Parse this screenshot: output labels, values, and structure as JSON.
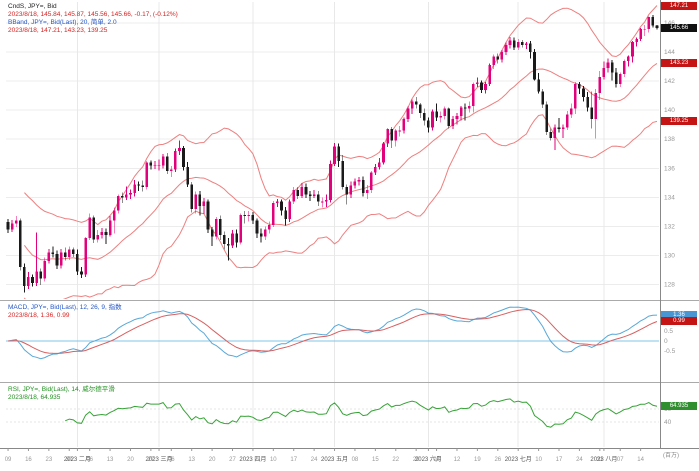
{
  "panels": {
    "price": {
      "legend_line1": "CndS, JPY=, Bid",
      "legend_line2": "2023/8/18, 145.84, 145.87, 145.56, 145.66, -0.17, (-0.12%)",
      "legend_line3": "BBand, JPY=, Bid(Last), 20, 简单, 2.0",
      "legend_line4": "2023/8/18, 147.21, 143.23, 139.25",
      "badges": {
        "upper_band": "147.21",
        "last_price": "145.66",
        "middle_band": "143.23",
        "lower_band": "139.25"
      },
      "y_ticks": [
        146,
        144,
        142,
        140,
        138,
        136,
        134,
        132,
        130,
        128
      ]
    },
    "macd": {
      "legend_line1": "MACD, JPY=, Bid(Last), 12, 26, 9, 指数",
      "legend_line2": "2023/8/18, 1.36, 0.99",
      "badges": {
        "macd_value": "1.36",
        "signal_value": "0.99"
      },
      "y_ticks": [
        0.5,
        0,
        -0.5
      ]
    },
    "rsi": {
      "legend_line1": "RSI, JPY=, Bid(Last), 14, 威尔德平滑",
      "legend_line2": "2023/8/18, 64.935",
      "badges": {
        "rsi_value": "64.935"
      },
      "y_ticks": [
        60,
        40
      ]
    }
  },
  "x_axis": {
    "unit_note": "(百万)",
    "labels": [
      {
        "i": 0,
        "t": "09"
      },
      {
        "i": 5,
        "t": "16"
      },
      {
        "i": 10,
        "t": "23"
      },
      {
        "i": 15,
        "t": "30"
      },
      {
        "i": 17,
        "t": "2023 二月",
        "month": true
      },
      {
        "i": 20,
        "t": "06"
      },
      {
        "i": 25,
        "t": "13"
      },
      {
        "i": 30,
        "t": "20"
      },
      {
        "i": 35,
        "t": "27"
      },
      {
        "i": 37,
        "t": "2023 三月",
        "month": true
      },
      {
        "i": 40,
        "t": "06"
      },
      {
        "i": 45,
        "t": "13"
      },
      {
        "i": 50,
        "t": "20"
      },
      {
        "i": 55,
        "t": "27"
      },
      {
        "i": 60,
        "t": "2023 四月",
        "month": true
      },
      {
        "i": 65,
        "t": "10"
      },
      {
        "i": 70,
        "t": "17"
      },
      {
        "i": 75,
        "t": "24"
      },
      {
        "i": 80,
        "t": "2023 五月",
        "month": true
      },
      {
        "i": 85,
        "t": "08"
      },
      {
        "i": 90,
        "t": "15"
      },
      {
        "i": 95,
        "t": "22"
      },
      {
        "i": 100,
        "t": "29"
      },
      {
        "i": 103,
        "t": "2023 六月",
        "month": true
      },
      {
        "i": 105,
        "t": "05"
      },
      {
        "i": 110,
        "t": "12"
      },
      {
        "i": 115,
        "t": "19"
      },
      {
        "i": 120,
        "t": "26"
      },
      {
        "i": 125,
        "t": "2023 七月",
        "month": true
      },
      {
        "i": 130,
        "t": "10"
      },
      {
        "i": 135,
        "t": "17"
      },
      {
        "i": 140,
        "t": "24"
      },
      {
        "i": 145,
        "t": "31"
      },
      {
        "i": 146,
        "t": "2023 八月",
        "month": true
      },
      {
        "i": 150,
        "t": "07"
      },
      {
        "i": 155,
        "t": "14"
      }
    ]
  },
  "colors": {
    "up": "#e2007d",
    "down": "#1a1a1a",
    "band": "#ef7f7f",
    "macd": "#58a8d8",
    "signal": "#d86060",
    "zero_line": "#7fc4e8",
    "rsi": "#36a336",
    "badge_red": "#c41414",
    "badge_black": "#111111",
    "badge_blue": "#4a96d2",
    "badge_green": "#2f8f2f"
  },
  "chart_data": {
    "type": "candlestick",
    "symbol": "JPY=",
    "last_bar_date": "2023/8/18",
    "indicators": {
      "bollinger": {
        "period": 20,
        "mult": 2.0,
        "ma_type": "简单"
      },
      "macd": {
        "fast": 12,
        "slow": 26,
        "signal": 9,
        "ma_type": "指数"
      },
      "rsi": {
        "period": 14,
        "smoothing": "威尔德平滑"
      }
    },
    "candles": [
      [
        132.3,
        132.5,
        131.55,
        131.8
      ],
      [
        131.8,
        132.45,
        131.6,
        132.2
      ],
      [
        132.2,
        132.7,
        131.95,
        132.4
      ],
      [
        132.4,
        132.55,
        128.95,
        129.2
      ],
      [
        129.2,
        129.45,
        127.45,
        127.9
      ],
      [
        127.9,
        128.85,
        127.7,
        128.5
      ],
      [
        128.5,
        128.7,
        127.85,
        128.1
      ],
      [
        128.1,
        131.58,
        127.9,
        128.9
      ],
      [
        128.9,
        129.1,
        127.95,
        128.4
      ],
      [
        128.4,
        129.85,
        128.2,
        129.6
      ],
      [
        129.6,
        130.45,
        129.45,
        130.2
      ],
      [
        130.2,
        130.6,
        129.85,
        130.1
      ],
      [
        130.1,
        130.35,
        129.05,
        129.3
      ],
      [
        129.3,
        130.45,
        129.1,
        130.2
      ],
      [
        130.2,
        130.55,
        129.65,
        129.9
      ],
      [
        129.9,
        130.6,
        129.7,
        130.4
      ],
      [
        130.4,
        130.55,
        129.9,
        130.1
      ],
      [
        130.1,
        130.4,
        128.65,
        128.9
      ],
      [
        128.9,
        129.2,
        128.45,
        128.7
      ],
      [
        128.7,
        131.25,
        128.5,
        131.2
      ],
      [
        131.2,
        132.9,
        131.05,
        132.6
      ],
      [
        132.6,
        132.75,
        130.85,
        131.1
      ],
      [
        131.1,
        131.75,
        130.9,
        131.4
      ],
      [
        131.4,
        131.9,
        131.15,
        131.6
      ],
      [
        131.6,
        131.85,
        130.8,
        131.4
      ],
      [
        131.4,
        132.7,
        131.3,
        132.4
      ],
      [
        132.4,
        133.3,
        131.5,
        133.1
      ],
      [
        133.1,
        134.2,
        132.9,
        134.1
      ],
      [
        134.1,
        134.35,
        133.6,
        134.0
      ],
      [
        134.0,
        134.75,
        133.8,
        134.2
      ],
      [
        134.2,
        134.55,
        133.9,
        134.3
      ],
      [
        134.3,
        135.2,
        134.05,
        134.9
      ],
      [
        134.9,
        135.1,
        134.45,
        134.8
      ],
      [
        134.8,
        135.15,
        134.4,
        134.7
      ],
      [
        134.7,
        136.5,
        134.55,
        136.4
      ],
      [
        136.4,
        136.55,
        135.9,
        136.2
      ],
      [
        136.2,
        136.5,
        135.95,
        136.2
      ],
      [
        136.2,
        136.6,
        135.85,
        136.2
      ],
      [
        136.2,
        137.0,
        136.0,
        136.8
      ],
      [
        136.8,
        137.05,
        135.6,
        135.8
      ],
      [
        135.8,
        136.15,
        135.4,
        135.9
      ],
      [
        135.9,
        137.35,
        135.75,
        137.2
      ],
      [
        137.2,
        137.91,
        136.9,
        137.4
      ],
      [
        137.4,
        137.55,
        135.85,
        136.1
      ],
      [
        136.1,
        136.45,
        134.7,
        134.9
      ],
      [
        134.9,
        135.05,
        132.95,
        133.2
      ],
      [
        133.2,
        134.4,
        132.9,
        134.2
      ],
      [
        134.2,
        134.45,
        132.75,
        133.4
      ],
      [
        133.4,
        133.95,
        132.85,
        133.7
      ],
      [
        133.7,
        133.85,
        131.55,
        131.8
      ],
      [
        131.8,
        131.95,
        130.65,
        131.3
      ],
      [
        131.3,
        132.65,
        131.1,
        132.5
      ],
      [
        132.5,
        132.75,
        131.05,
        131.4
      ],
      [
        131.4,
        131.65,
        130.4,
        130.8
      ],
      [
        130.8,
        131.2,
        129.65,
        130.7
      ],
      [
        130.7,
        131.75,
        130.5,
        131.5
      ],
      [
        131.5,
        131.8,
        130.55,
        130.9
      ],
      [
        130.9,
        132.9,
        130.75,
        132.8
      ],
      [
        132.8,
        133.05,
        132.2,
        132.7
      ],
      [
        132.7,
        133.05,
        132.35,
        132.8
      ],
      [
        132.8,
        133.0,
        132.15,
        132.4
      ],
      [
        132.4,
        132.55,
        131.2,
        131.5
      ],
      [
        131.5,
        131.85,
        130.9,
        131.3
      ],
      [
        131.3,
        132.0,
        131.05,
        131.8
      ],
      [
        131.8,
        132.35,
        131.5,
        132.1
      ],
      [
        132.1,
        133.75,
        131.95,
        133.6
      ],
      [
        133.6,
        133.9,
        133.35,
        133.7
      ],
      [
        133.7,
        133.85,
        132.75,
        133.1
      ],
      [
        133.1,
        133.35,
        132.05,
        132.5
      ],
      [
        132.5,
        133.85,
        132.3,
        133.7
      ],
      [
        133.7,
        134.7,
        133.55,
        134.5
      ],
      [
        134.5,
        134.7,
        133.9,
        134.1
      ],
      [
        134.1,
        135.0,
        133.95,
        134.7
      ],
      [
        134.7,
        134.95,
        133.95,
        134.2
      ],
      [
        134.2,
        134.45,
        133.75,
        134.1
      ],
      [
        134.1,
        134.5,
        133.95,
        134.2
      ],
      [
        134.2,
        134.45,
        133.4,
        133.7
      ],
      [
        133.7,
        134.0,
        133.3,
        133.7
      ],
      [
        133.7,
        134.2,
        133.35,
        133.8
      ],
      [
        133.8,
        136.55,
        133.65,
        136.3
      ],
      [
        136.3,
        137.75,
        136.15,
        137.5
      ],
      [
        137.5,
        137.7,
        136.1,
        136.5
      ],
      [
        136.5,
        136.9,
        134.55,
        134.7
      ],
      [
        134.7,
        134.9,
        133.5,
        134.2
      ],
      [
        134.2,
        135.1,
        133.95,
        134.8
      ],
      [
        134.8,
        135.3,
        134.6,
        135.1
      ],
      [
        135.1,
        135.4,
        134.8,
        135.2
      ],
      [
        135.2,
        135.45,
        134.05,
        134.3
      ],
      [
        134.3,
        134.85,
        133.9,
        134.5
      ],
      [
        134.5,
        135.8,
        134.3,
        135.7
      ],
      [
        135.7,
        136.3,
        135.55,
        136.1
      ],
      [
        136.1,
        136.7,
        135.9,
        136.4
      ],
      [
        136.4,
        137.8,
        136.25,
        137.7
      ],
      [
        137.7,
        138.75,
        137.45,
        138.7
      ],
      [
        138.7,
        138.85,
        137.4,
        137.9
      ],
      [
        137.9,
        138.7,
        137.5,
        138.6
      ],
      [
        138.6,
        138.9,
        138.2,
        138.6
      ],
      [
        138.6,
        139.5,
        138.4,
        139.4
      ],
      [
        139.4,
        140.25,
        139.2,
        140.1
      ],
      [
        140.1,
        140.75,
        139.75,
        140.6
      ],
      [
        140.6,
        140.9,
        140.1,
        140.4
      ],
      [
        140.4,
        140.5,
        139.45,
        139.8
      ],
      [
        139.8,
        140.1,
        138.95,
        139.3
      ],
      [
        139.3,
        139.5,
        138.45,
        138.8
      ],
      [
        138.8,
        140.05,
        138.6,
        139.9
      ],
      [
        139.9,
        140.45,
        139.25,
        139.5
      ],
      [
        139.5,
        139.9,
        139.15,
        139.6
      ],
      [
        139.6,
        140.25,
        139.35,
        140.1
      ],
      [
        140.1,
        140.2,
        138.75,
        138.9
      ],
      [
        138.9,
        139.6,
        138.7,
        139.4
      ],
      [
        139.4,
        139.8,
        139.0,
        139.6
      ],
      [
        139.6,
        140.3,
        139.3,
        140.2
      ],
      [
        140.2,
        140.45,
        139.3,
        140.1
      ],
      [
        140.1,
        140.6,
        139.85,
        140.3
      ],
      [
        140.3,
        141.9,
        139.85,
        141.8
      ],
      [
        141.8,
        142.25,
        141.6,
        141.9
      ],
      [
        141.9,
        142.05,
        141.2,
        141.4
      ],
      [
        141.4,
        141.95,
        141.15,
        141.8
      ],
      [
        141.8,
        143.2,
        141.65,
        143.1
      ],
      [
        143.1,
        143.85,
        142.85,
        143.7
      ],
      [
        143.7,
        143.9,
        143.2,
        143.5
      ],
      [
        143.5,
        144.15,
        143.3,
        144.0
      ],
      [
        144.0,
        144.65,
        143.8,
        144.5
      ],
      [
        144.5,
        145.05,
        144.25,
        144.8
      ],
      [
        144.8,
        145.0,
        144.15,
        144.3
      ],
      [
        144.3,
        144.9,
        144.15,
        144.7
      ],
      [
        144.7,
        144.85,
        144.3,
        144.5
      ],
      [
        144.5,
        144.7,
        144.2,
        144.6
      ],
      [
        144.6,
        144.75,
        143.55,
        144.0
      ],
      [
        144.0,
        144.2,
        142.05,
        142.1
      ],
      [
        142.1,
        142.55,
        141.15,
        141.3
      ],
      [
        141.3,
        141.45,
        140.15,
        140.4
      ],
      [
        140.4,
        140.6,
        138.3,
        138.5
      ],
      [
        138.5,
        138.75,
        137.9,
        138.1
      ],
      [
        138.1,
        139.0,
        137.25,
        138.8
      ],
      [
        138.8,
        139.45,
        138.45,
        138.7
      ],
      [
        138.7,
        139.0,
        138.1,
        138.8
      ],
      [
        138.8,
        139.95,
        138.65,
        139.7
      ],
      [
        139.7,
        140.45,
        139.45,
        140.1
      ],
      [
        140.1,
        141.95,
        139.75,
        141.8
      ],
      [
        141.8,
        141.95,
        141.1,
        141.5
      ],
      [
        141.5,
        141.65,
        140.6,
        140.9
      ],
      [
        140.9,
        141.25,
        139.9,
        140.2
      ],
      [
        140.2,
        141.3,
        138.75,
        139.4
      ],
      [
        139.4,
        141.45,
        138.05,
        141.2
      ],
      [
        141.2,
        142.7,
        140.7,
        142.3
      ],
      [
        142.3,
        143.35,
        142.1,
        142.9
      ],
      [
        142.9,
        143.55,
        142.6,
        143.3
      ],
      [
        143.3,
        143.45,
        142.05,
        142.6
      ],
      [
        142.6,
        142.9,
        141.55,
        141.8
      ],
      [
        141.8,
        142.6,
        141.6,
        142.5
      ],
      [
        142.5,
        143.5,
        142.3,
        143.4
      ],
      [
        143.4,
        143.75,
        143.0,
        143.7
      ],
      [
        143.7,
        144.75,
        143.3,
        144.7
      ],
      [
        144.7,
        145.0,
        144.4,
        144.9
      ],
      [
        144.9,
        145.65,
        144.75,
        145.6
      ],
      [
        145.6,
        145.85,
        145.1,
        145.6
      ],
      [
        145.6,
        146.45,
        145.35,
        146.4
      ],
      [
        146.4,
        146.56,
        145.7,
        145.84
      ],
      [
        145.84,
        145.87,
        145.56,
        145.66
      ]
    ]
  }
}
